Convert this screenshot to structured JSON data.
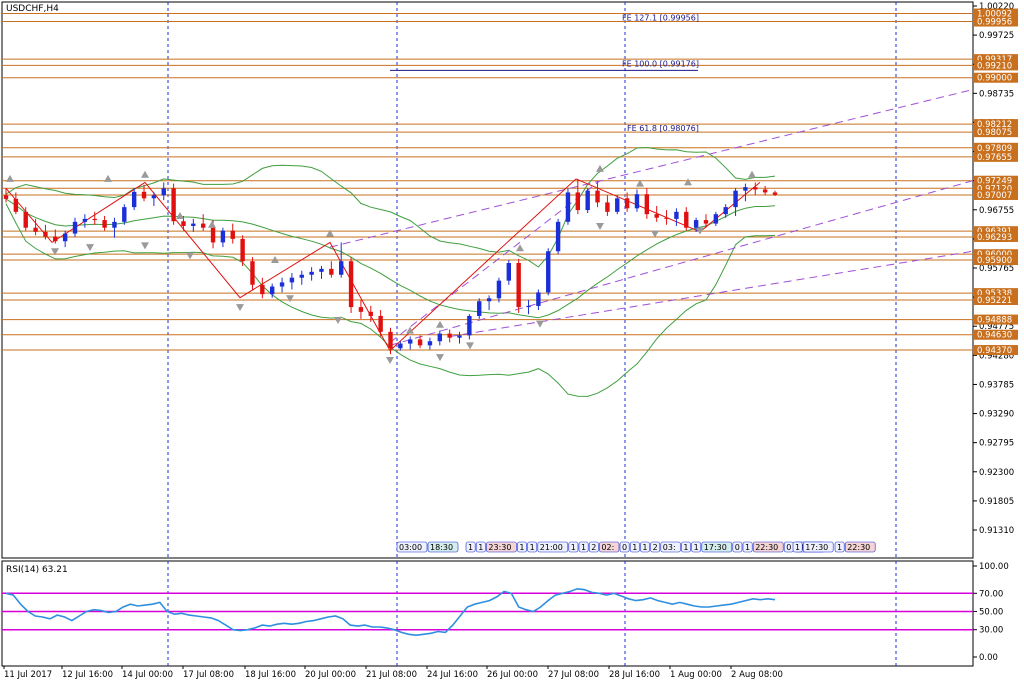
{
  "symbol_title": "USDCHF,H4",
  "rsi_title": "RSI(14) 63.21",
  "colors": {
    "bull": "#1a2fd8",
    "bear": "#e01010",
    "level": "#c8701e",
    "grid": "#1a2fd8",
    "bollinger": "#3f9f3f",
    "channel": "#a050d8",
    "rsi_line": "#2f8fdf",
    "rsi_level": "#d800d8",
    "zigzag": "#e01010"
  },
  "chart_data": [
    {
      "type": "candlestick",
      "name": "price",
      "y_axis_ticks": [
        "1.00220",
        "0.99725",
        "0.99230",
        "0.98735",
        "0.98240",
        "0.97745",
        "0.97250",
        "0.96755",
        "0.96260",
        "0.95765",
        "0.95270",
        "0.94775",
        "0.94280",
        "0.93785",
        "0.93290",
        "0.92795",
        "0.92300",
        "0.91805",
        "0.91310"
      ],
      "ylim": [
        0.9131,
        1.0022
      ],
      "x_axis_ticks": [
        "11 Jul 2017",
        "12 Jul 16:00",
        "14 Jul 00:00",
        "17 Jul 08:00",
        "18 Jul 16:00",
        "20 Jul 00:00",
        "21 Jul 08:00",
        "24 Jul 16:00",
        "26 Jul 00:00",
        "27 Jul 08:00",
        "28 Jul 16:00",
        "1 Aug 00:00",
        "2 Aug 08:00"
      ],
      "price_tags": [
        "1.00092",
        "0.99956",
        "0.99317",
        "0.99210",
        "0.99000",
        "0.98212",
        "0.98075",
        "0.97809",
        "0.97655",
        "0.97249",
        "0.97120",
        "0.97007",
        "0.96391",
        "0.96293",
        "0.96000",
        "0.95900",
        "0.95338",
        "0.95221",
        "0.94888",
        "0.94630",
        "0.94370"
      ],
      "fibonacci": [
        "FE 127.1 [0.99956]",
        "FE 100.0 [0.99176]",
        "FE 61.8 [0.98076]"
      ],
      "session_labels": [
        "03:00",
        "18:30",
        "1",
        "1",
        "23:30",
        "1",
        "1",
        "21:00",
        "1",
        "1",
        "2",
        "02:",
        "0",
        "1",
        "1",
        "2",
        "03:",
        "1",
        "1",
        "17:30",
        "0",
        "1",
        "22:30",
        "0",
        "18:00",
        "1",
        "17:30",
        "1",
        "22:30"
      ],
      "ohlc": [
        [
          0.97,
          0.9712,
          0.9688,
          0.9694
        ],
        [
          0.9694,
          0.9705,
          0.9668,
          0.9672
        ],
        [
          0.9672,
          0.968,
          0.964,
          0.9645
        ],
        [
          0.9645,
          0.966,
          0.9632,
          0.9638
        ],
        [
          0.9638,
          0.965,
          0.9625,
          0.963
        ],
        [
          0.963,
          0.9642,
          0.9618,
          0.9622
        ],
        [
          0.9622,
          0.964,
          0.9612,
          0.9635
        ],
        [
          0.9635,
          0.9662,
          0.963,
          0.9655
        ],
        [
          0.9655,
          0.9668,
          0.9645,
          0.966
        ],
        [
          0.966,
          0.9672,
          0.965,
          0.9658
        ],
        [
          0.9658,
          0.9665,
          0.964,
          0.9645
        ],
        [
          0.9645,
          0.9662,
          0.9628,
          0.9655
        ],
        [
          0.9655,
          0.9685,
          0.965,
          0.968
        ],
        [
          0.968,
          0.9712,
          0.9675,
          0.9706
        ],
        [
          0.9706,
          0.9718,
          0.969,
          0.9695
        ],
        [
          0.9695,
          0.9705,
          0.9682,
          0.97
        ],
        [
          0.97,
          0.9722,
          0.9692,
          0.9712
        ],
        [
          0.9712,
          0.972,
          0.965,
          0.9656
        ],
        [
          0.9656,
          0.9665,
          0.964,
          0.9648
        ],
        [
          0.9648,
          0.966,
          0.9638,
          0.9652
        ],
        [
          0.9652,
          0.9668,
          0.964,
          0.9645
        ],
        [
          0.9645,
          0.9658,
          0.961,
          0.962
        ],
        [
          0.962,
          0.9645,
          0.9612,
          0.964
        ],
        [
          0.964,
          0.9652,
          0.9618,
          0.9626
        ],
        [
          0.9626,
          0.9632,
          0.958,
          0.9588
        ],
        [
          0.9588,
          0.9595,
          0.954,
          0.9548
        ],
        [
          0.9548,
          0.956,
          0.9525,
          0.9532
        ],
        [
          0.9532,
          0.955,
          0.9526,
          0.9545
        ],
        [
          0.9545,
          0.956,
          0.9535,
          0.9552
        ],
        [
          0.9552,
          0.9568,
          0.954,
          0.956
        ],
        [
          0.956,
          0.9572,
          0.9548,
          0.9565
        ],
        [
          0.9565,
          0.9578,
          0.9555,
          0.957
        ],
        [
          0.957,
          0.958,
          0.9558,
          0.9575
        ],
        [
          0.9575,
          0.9588,
          0.956,
          0.9565
        ],
        [
          0.9565,
          0.962,
          0.956,
          0.9588
        ],
        [
          0.9588,
          0.9595,
          0.95,
          0.951
        ],
        [
          0.951,
          0.9522,
          0.949,
          0.9502
        ],
        [
          0.9502,
          0.9512,
          0.9485,
          0.9495
        ],
        [
          0.9495,
          0.9505,
          0.946,
          0.9468
        ],
        [
          0.9468,
          0.9475,
          0.943,
          0.944
        ],
        [
          0.944,
          0.9452,
          0.9436,
          0.9448
        ],
        [
          0.9448,
          0.946,
          0.9438,
          0.9455
        ],
        [
          0.9455,
          0.9462,
          0.944,
          0.9445
        ],
        [
          0.9445,
          0.9458,
          0.9438,
          0.9452
        ],
        [
          0.9452,
          0.947,
          0.9445,
          0.9465
        ],
        [
          0.9465,
          0.9472,
          0.945,
          0.9458
        ],
        [
          0.9458,
          0.9468,
          0.9448,
          0.9462
        ],
        [
          0.9462,
          0.9498,
          0.9455,
          0.9495
        ],
        [
          0.9495,
          0.9525,
          0.949,
          0.952
        ],
        [
          0.952,
          0.953,
          0.9505,
          0.9525
        ],
        [
          0.9525,
          0.956,
          0.9518,
          0.9555
        ],
        [
          0.9555,
          0.959,
          0.9548,
          0.9585
        ],
        [
          0.9585,
          0.9592,
          0.95,
          0.951
        ],
        [
          0.951,
          0.9522,
          0.9498,
          0.9512
        ],
        [
          0.9512,
          0.954,
          0.9505,
          0.9535
        ],
        [
          0.9535,
          0.961,
          0.953,
          0.9605
        ],
        [
          0.9605,
          0.966,
          0.96,
          0.9655
        ],
        [
          0.9655,
          0.9712,
          0.965,
          0.9705
        ],
        [
          0.9705,
          0.9728,
          0.9668,
          0.9675
        ],
        [
          0.9675,
          0.9712,
          0.967,
          0.9708
        ],
        [
          0.9708,
          0.9722,
          0.968,
          0.9688
        ],
        [
          0.9688,
          0.97,
          0.9665,
          0.9672
        ],
        [
          0.9672,
          0.97,
          0.9668,
          0.9695
        ],
        [
          0.9695,
          0.9705,
          0.9672,
          0.9678
        ],
        [
          0.9678,
          0.971,
          0.9672,
          0.9702
        ],
        [
          0.9702,
          0.9712,
          0.966,
          0.9668
        ],
        [
          0.9668,
          0.9682,
          0.9655,
          0.9662
        ],
        [
          0.9662,
          0.9675,
          0.965,
          0.966
        ],
        [
          0.966,
          0.9678,
          0.9648,
          0.9672
        ],
        [
          0.9672,
          0.968,
          0.964,
          0.9645
        ],
        [
          0.9645,
          0.9662,
          0.9638,
          0.9658
        ],
        [
          0.9658,
          0.9668,
          0.9645,
          0.9652
        ],
        [
          0.9652,
          0.9672,
          0.9648,
          0.9668
        ],
        [
          0.9668,
          0.9685,
          0.9662,
          0.968
        ],
        [
          0.968,
          0.9712,
          0.9665,
          0.9708
        ],
        [
          0.9708,
          0.972,
          0.969,
          0.9714
        ],
        [
          0.9714,
          0.9722,
          0.97,
          0.971
        ],
        [
          0.971,
          0.9716,
          0.97,
          0.9705
        ],
        [
          0.9705,
          0.9708,
          0.9699,
          0.9701
        ]
      ]
    },
    {
      "type": "line",
      "name": "RSI(14)",
      "value": 63.21,
      "y_axis_ticks": [
        "100.00",
        "70.00",
        "50.00",
        "30.00",
        "0.00"
      ],
      "levels": [
        70,
        50,
        30
      ],
      "ylim": [
        0,
        100
      ],
      "values": [
        70,
        68,
        58,
        50,
        45,
        44,
        42,
        46,
        44,
        40,
        45,
        50,
        52,
        51,
        49,
        50,
        55,
        58,
        56,
        57,
        58,
        60,
        50,
        47,
        48,
        46,
        45,
        44,
        43,
        40,
        35,
        30,
        29,
        30,
        32,
        35,
        34,
        36,
        37,
        36,
        37,
        39,
        40,
        42,
        44,
        45,
        42,
        35,
        34,
        35,
        33,
        33,
        32,
        30,
        27,
        25,
        24,
        25,
        26,
        28,
        27,
        35,
        45,
        55,
        58,
        60,
        62,
        66,
        72,
        70,
        55,
        52,
        50,
        55,
        62,
        68,
        70,
        72,
        75,
        74,
        71,
        70,
        68,
        70,
        67,
        64,
        62,
        63,
        65,
        62,
        60,
        58,
        60,
        58,
        56,
        55,
        55,
        56,
        57,
        58,
        60,
        62,
        64,
        63,
        64,
        63
      ]
    }
  ]
}
